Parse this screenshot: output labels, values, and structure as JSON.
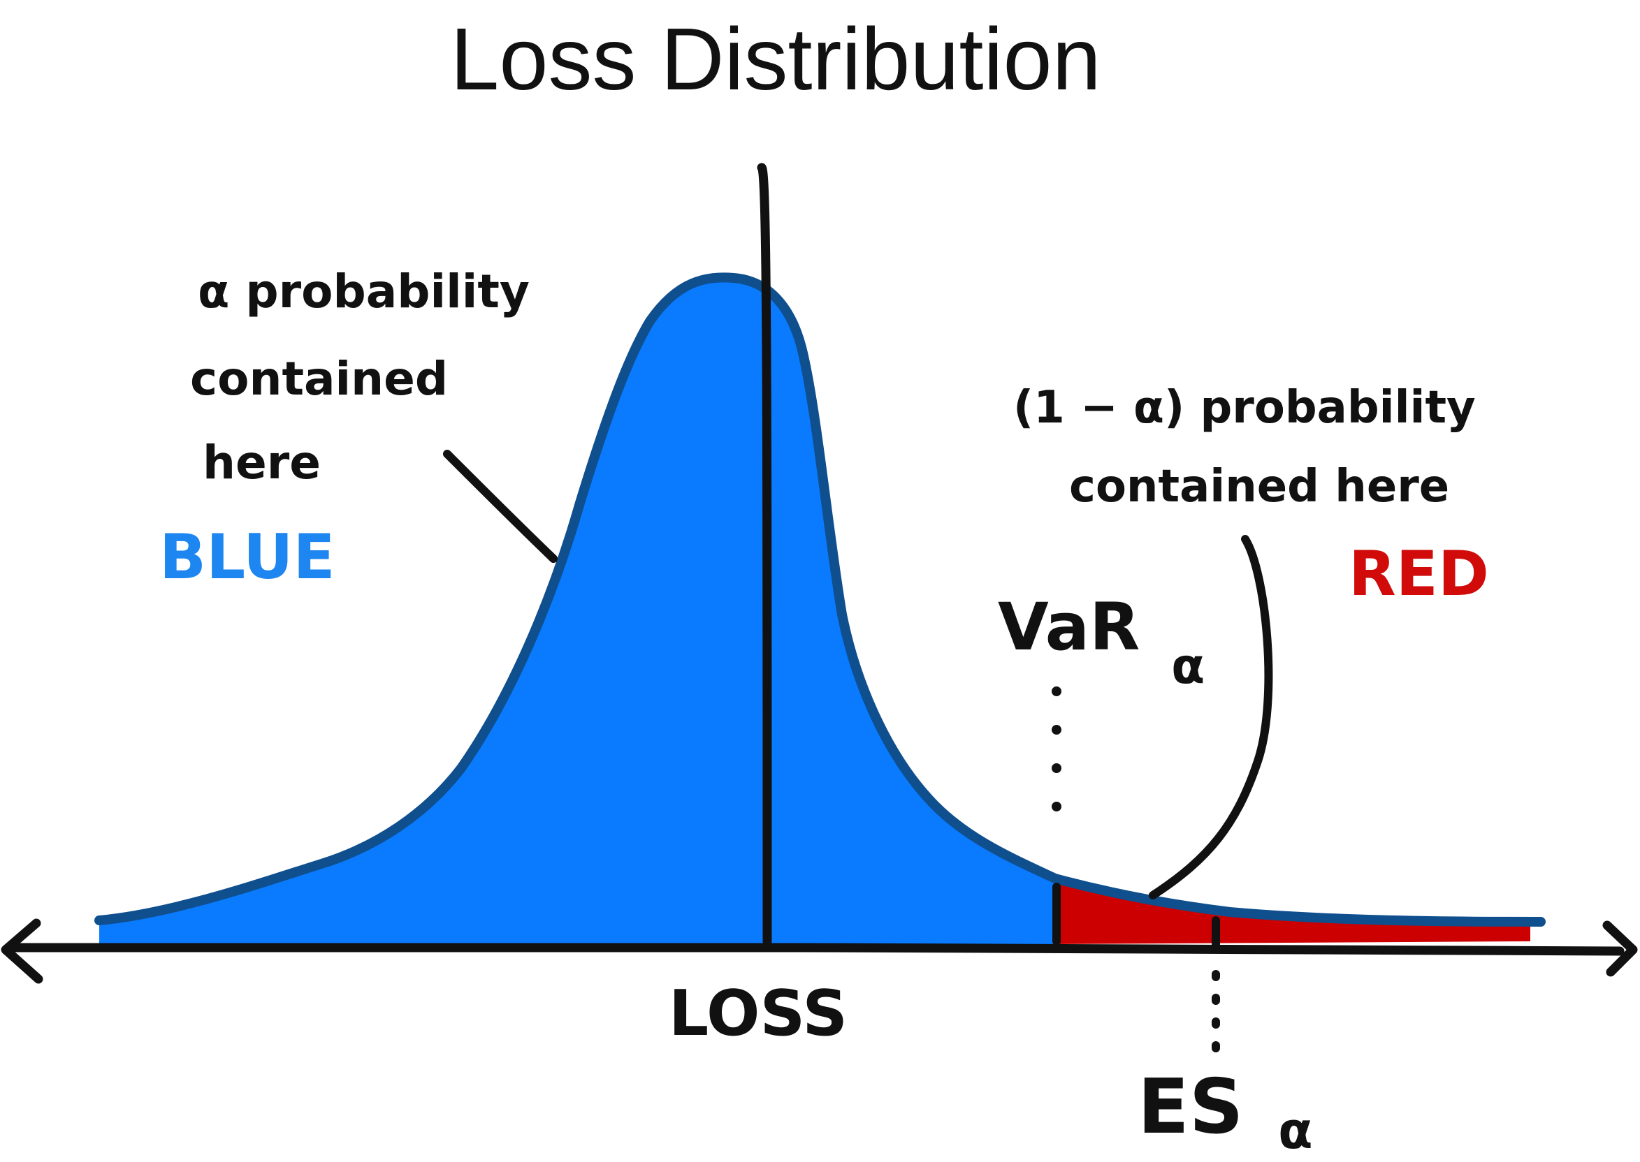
{
  "title": "Loss Distribution",
  "axis": {
    "label": "LOSS"
  },
  "markers": {
    "var_label": "VaR",
    "var_subscript": "α",
    "es_label": "ES",
    "es_subscript": "α"
  },
  "annotations": {
    "left_note": [
      "α probability",
      "contained",
      "here"
    ],
    "left_color_word": "BLUE",
    "right_note": [
      "(1 − α) probability",
      "contained here"
    ],
    "right_color_word": "RED"
  },
  "colors": {
    "body_fill": "#0A7BFF",
    "body_outline": "#0F4F8E",
    "tail_fill": "#CC0000",
    "blue_word": "#1E86F0",
    "red_word": "#D10A0A",
    "ink": "#111111"
  }
}
